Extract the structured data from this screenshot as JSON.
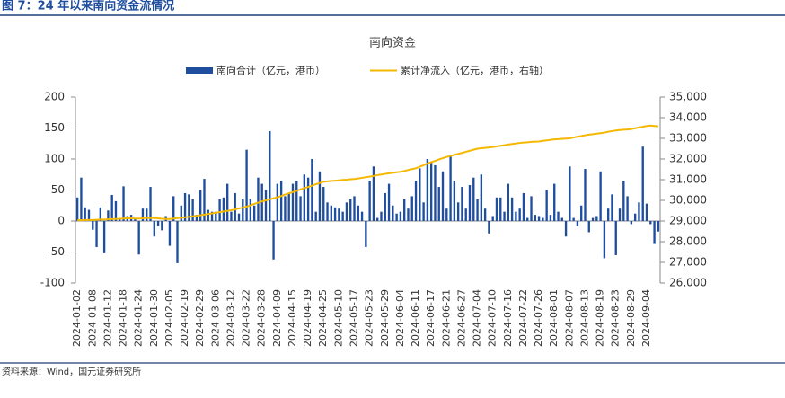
{
  "figure_title": "图 7：24 年以来南向资金流情况",
  "source": "资料来源：Wind，国元证券研究所",
  "chart_data": {
    "type": "bar_line",
    "title": "南向资金",
    "categories": [
      "2024-01-02",
      null,
      null,
      null,
      "2024-01-08",
      null,
      null,
      null,
      "2024-01-12",
      null,
      null,
      null,
      "2024-01-18",
      null,
      null,
      null,
      "2024-01-24",
      null,
      null,
      null,
      "2024-01-30",
      null,
      null,
      null,
      "2024-02-05",
      null,
      null,
      null,
      "2024-02-19",
      null,
      null,
      null,
      "2024-02-29",
      null,
      null,
      null,
      "2024-03-06",
      null,
      null,
      null,
      "2024-03-12",
      null,
      null,
      null,
      "2024-03-22",
      null,
      null,
      null,
      "2024-03-28",
      null,
      null,
      null,
      "2024-04-09",
      null,
      null,
      null,
      "2024-04-15",
      null,
      null,
      null,
      "2024-04-19",
      null,
      null,
      null,
      "2024-04-25",
      null,
      null,
      null,
      "2024-05-10",
      null,
      null,
      null,
      "2024-05-17",
      null,
      null,
      null,
      "2024-05-23",
      null,
      null,
      null,
      "2024-05-29",
      null,
      null,
      null,
      "2024-06-04",
      null,
      null,
      null,
      "2024-06-11",
      null,
      null,
      null,
      "2024-06-17",
      null,
      null,
      null,
      "2024-06-21",
      null,
      null,
      null,
      "2024-06-27",
      null,
      null,
      null,
      "2024-07-04",
      null,
      null,
      null,
      "2024-07-10",
      null,
      null,
      null,
      "2024-07-16",
      null,
      null,
      null,
      "2024-07-22",
      null,
      null,
      null,
      "2024-07-26",
      null,
      null,
      null,
      "2024-08-01",
      null,
      null,
      null,
      "2024-08-07",
      null,
      null,
      null,
      "2024-08-13",
      null,
      null,
      null,
      "2024-08-19",
      null,
      null,
      null,
      "2024-08-23",
      null,
      null,
      null,
      "2024-08-29",
      null,
      null,
      null,
      "2024-09-04",
      null,
      null,
      null
    ],
    "series": [
      {
        "name": "南向合计（亿元，港币）",
        "type": "bar",
        "color": "#1f4e9e",
        "values": [
          38,
          70,
          22,
          18,
          -14,
          -42,
          22,
          -52,
          17,
          42,
          32,
          3,
          56,
          8,
          10,
          5,
          -54,
          20,
          20,
          55,
          -25,
          -8,
          -15,
          8,
          -40,
          40,
          -68,
          25,
          45,
          43,
          35,
          10,
          50,
          68,
          18,
          15,
          15,
          35,
          38,
          60,
          15,
          45,
          12,
          35,
          115,
          35,
          25,
          70,
          60,
          50,
          145,
          -62,
          60,
          65,
          40,
          45,
          60,
          65,
          40,
          75,
          70,
          100,
          15,
          80,
          55,
          30,
          25,
          22,
          20,
          15,
          30,
          35,
          40,
          25,
          15,
          -42,
          65,
          88,
          5,
          15,
          45,
          60,
          25,
          12,
          15,
          35,
          20,
          40,
          65,
          85,
          30,
          100,
          95,
          90,
          55,
          80,
          20,
          105,
          65,
          30,
          55,
          20,
          58,
          70,
          35,
          75,
          20,
          -20,
          8,
          38,
          38,
          15,
          60,
          38,
          15,
          20,
          45,
          5,
          40,
          10,
          8,
          5,
          50,
          10,
          60,
          15,
          5,
          -25,
          88,
          5,
          -8,
          25,
          84,
          -18,
          5,
          8,
          80,
          -60,
          20,
          43,
          -55,
          20,
          65,
          40,
          -5,
          12,
          30,
          120,
          28,
          -5,
          -37,
          -17
        ]
      },
      {
        "name": "累计净流入（亿元，港币，右轴）",
        "type": "line",
        "axis": "y2",
        "color": "#f5b800",
        "values": [
          29040,
          29040,
          29050,
          29050,
          29050,
          29060,
          29070,
          29070,
          29080,
          29090,
          29100,
          29110,
          29120,
          29130,
          29130,
          29120,
          29120,
          29130,
          29150,
          29140,
          29140,
          29130,
          29110,
          29100,
          29100,
          29120,
          29140,
          29160,
          29180,
          29200,
          29230,
          29250,
          29280,
          29310,
          29340,
          29370,
          29400,
          29430,
          29460,
          29490,
          29520,
          29560,
          29610,
          29650,
          29700,
          29760,
          29830,
          29890,
          29950,
          30000,
          30050,
          30100,
          30150,
          30210,
          30280,
          30340,
          30400,
          30460,
          30530,
          30590,
          30650,
          30710,
          30780,
          30840,
          30900,
          30920,
          30940,
          30950,
          30970,
          30990,
          31000,
          31020,
          31030,
          31060,
          31090,
          31120,
          31150,
          31180,
          31220,
          31250,
          31280,
          31310,
          31330,
          31360,
          31380,
          31420,
          31470,
          31510,
          31550,
          31630,
          31700,
          31780,
          31850,
          31910,
          31980,
          32040,
          32100,
          32150,
          32200,
          32250,
          32300,
          32350,
          32400,
          32450,
          32500,
          32520,
          32540,
          32560,
          32580,
          32610,
          32640,
          32670,
          32700,
          32730,
          32750,
          32780,
          32800,
          32810,
          32830,
          32840,
          32850,
          32880,
          32900,
          32930,
          32950,
          32960,
          32980,
          32990,
          33000,
          33040,
          33080,
          33110,
          33150,
          33180,
          33200,
          33230,
          33250,
          33280,
          33320,
          33350,
          33380,
          33400,
          33420,
          33430,
          33450,
          33490,
          33530,
          33560,
          33600,
          33620,
          33600,
          33580
        ]
      }
    ],
    "ylim": [
      -100,
      200
    ],
    "yticks": [
      -100,
      -50,
      0,
      50,
      100,
      150,
      200
    ],
    "y2lim": [
      26000,
      35000
    ],
    "y2ticks": [
      {
        "value": 26000,
        "label": "26,000"
      },
      {
        "value": 27000,
        "label": "27,000"
      },
      {
        "value": 28000,
        "label": "28,000"
      },
      {
        "value": 29000,
        "label": "29,000"
      },
      {
        "value": 30000,
        "label": "30,000"
      },
      {
        "value": 31000,
        "label": "31,000"
      },
      {
        "value": 32000,
        "label": "32,000"
      },
      {
        "value": 33000,
        "label": "33,000"
      },
      {
        "value": 34000,
        "label": "34,000"
      },
      {
        "value": 35000,
        "label": "35,000"
      }
    ],
    "grid": false,
    "legend": "top"
  }
}
